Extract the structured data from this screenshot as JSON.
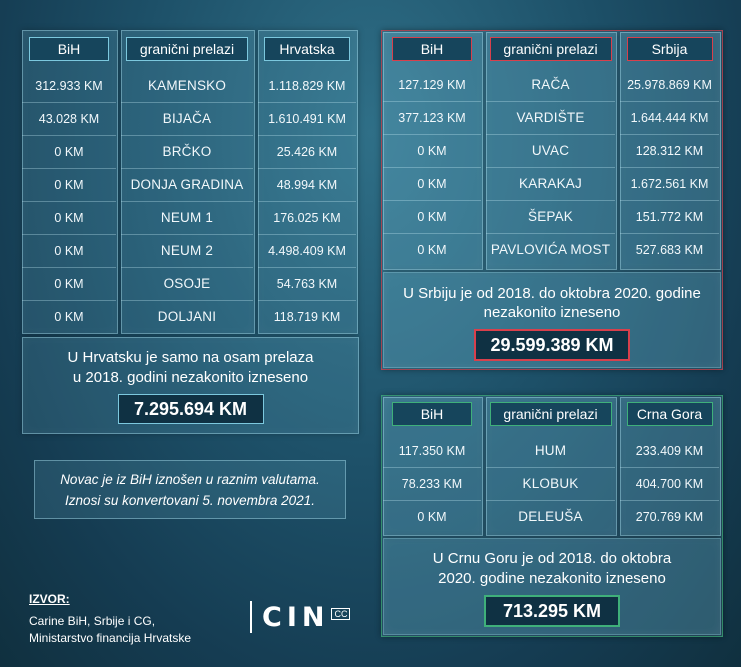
{
  "croatia": {
    "col_bih": "BiH",
    "col_crossings": "granični prelazi",
    "col_country": "Hrvatska",
    "rows": [
      {
        "bih": "312.933 KM",
        "name": "KAMENSKO",
        "other": "1.118.829 KM"
      },
      {
        "bih": "43.028 KM",
        "name": "BIJAČA",
        "other": "1.610.491 KM"
      },
      {
        "bih": "0 KM",
        "name": "BRČKO",
        "other": "25.426 KM"
      },
      {
        "bih": "0 KM",
        "name": "DONJA GRADINA",
        "other": "48.994 KM"
      },
      {
        "bih": "0 KM",
        "name": "NEUM 1",
        "other": "176.025 KM"
      },
      {
        "bih": "0 KM",
        "name": "NEUM 2",
        "other": "4.498.409 KM"
      },
      {
        "bih": "0 KM",
        "name": "OSOJE",
        "other": "54.763 KM"
      },
      {
        "bih": "0 KM",
        "name": "DOLJANI",
        "other": "118.719 KM"
      }
    ],
    "summary_line1": "U Hrvatsku je samo na osam prelaza",
    "summary_line2": "u 2018. godini nezakonito izneseno",
    "total": "7.295.694 KM",
    "accent": "#7cc8de"
  },
  "serbia": {
    "col_bih": "BiH",
    "col_crossings": "granični prelazi",
    "col_country": "Srbija",
    "rows": [
      {
        "bih": "127.129 KM",
        "name": "RAČA",
        "other": "25.978.869 KM"
      },
      {
        "bih": "377.123 KM",
        "name": "VARDIŠTE",
        "other": "1.644.444 KM"
      },
      {
        "bih": "0 KM",
        "name": "UVAC",
        "other": "128.312 KM"
      },
      {
        "bih": "0 KM",
        "name": "KARAKAJ",
        "other": "1.672.561 KM"
      },
      {
        "bih": "0 KM",
        "name": "ŠEPAK",
        "other": "151.772 KM"
      },
      {
        "bih": "0 KM",
        "name": "PAVLOVIĆA MOST",
        "other": "527.683 KM"
      }
    ],
    "summary_line1": "U Srbiju je od 2018. do oktobra 2020. godine",
    "summary_line2": "nezakonito izneseno",
    "total": "29.599.389 KM",
    "accent": "#d8404c"
  },
  "montenegro": {
    "col_bih": "BiH",
    "col_crossings": "granični prelazi",
    "col_country": "Crna Gora",
    "rows": [
      {
        "bih": "117.350 KM",
        "name": "HUM",
        "other": "233.409 KM"
      },
      {
        "bih": "78.233 KM",
        "name": "KLOBUK",
        "other": "404.700 KM"
      },
      {
        "bih": "0 KM",
        "name": "DELEUŠA",
        "other": "270.769 KM"
      }
    ],
    "summary_line1": "U Crnu Goru je od 2018. do oktobra",
    "summary_line2": "2020. godine nezakonito izneseno",
    "total": "713.295 KM",
    "accent": "#3fb07a"
  },
  "note": {
    "line1": "Novac je iz BiH iznošen u raznim valutama.",
    "line2": "Iznosi su konvertovani 5. novembra 2021."
  },
  "source": {
    "title": "IZVOR:",
    "line1": "Carine BiH, Srbije i CG,",
    "line2": "Ministarstvo financija Hrvatske"
  },
  "logo": {
    "text": "CIN",
    "mark": "CC"
  }
}
